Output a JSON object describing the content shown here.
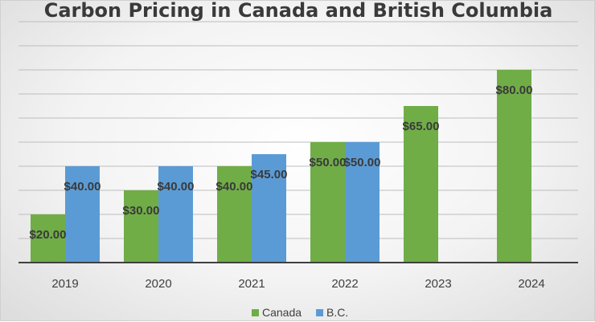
{
  "chart_data": {
    "type": "bar",
    "title": "Carbon Pricing in Canada and British Columbia",
    "categories": [
      "2019",
      "2020",
      "2021",
      "2022",
      "2023",
      "2024"
    ],
    "series": [
      {
        "name": "Canada",
        "color": "#70ad47",
        "values": [
          20,
          30,
          40,
          50,
          65,
          80
        ],
        "labels": [
          "$20.00",
          "$30.00",
          "$40.00",
          "$50.00",
          "$65.00",
          "$80.00"
        ]
      },
      {
        "name": "B.C.",
        "color": "#5b9bd5",
        "values": [
          40,
          40,
          45,
          50,
          null,
          null
        ],
        "labels": [
          "$40.00",
          "$40.00",
          "$45.00",
          "$50.00",
          null,
          null
        ]
      }
    ],
    "ylim": [
      0,
      100
    ],
    "grid": true,
    "legend_position": "bottom"
  }
}
